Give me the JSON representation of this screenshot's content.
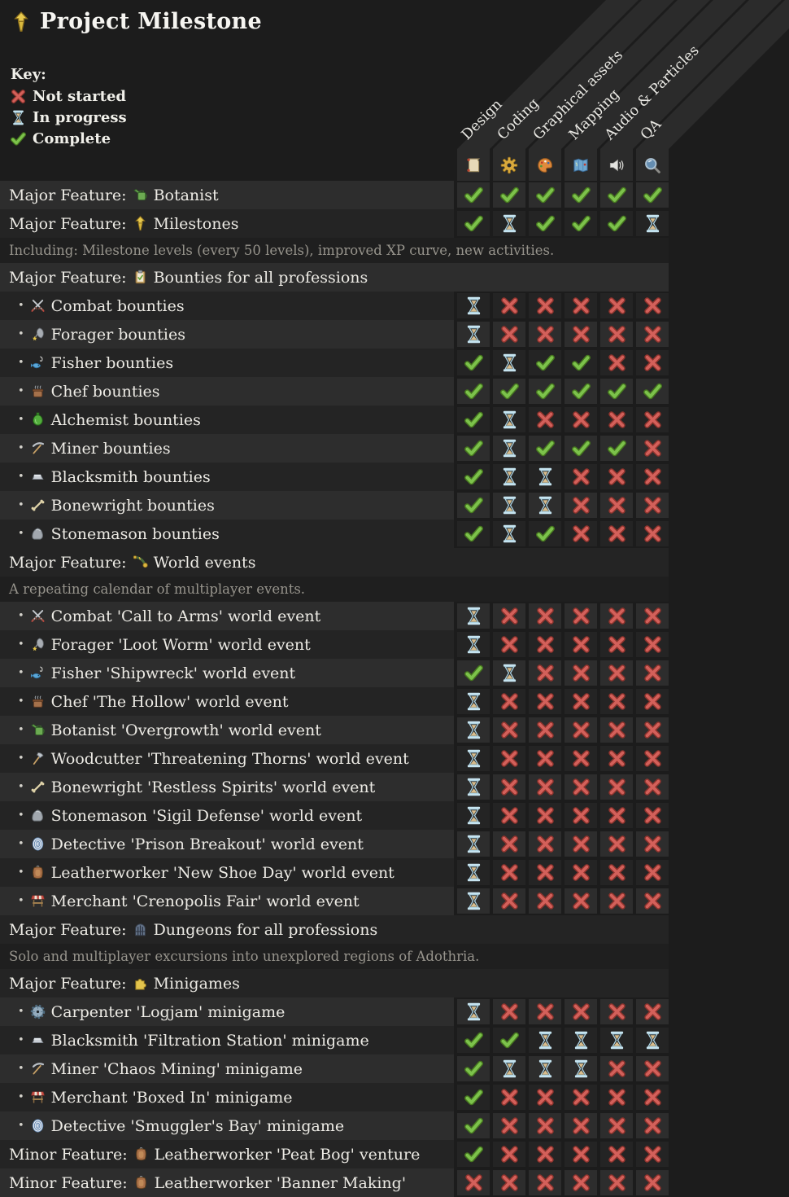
{
  "page": {
    "title": "Project Milestone",
    "background": "#1c1c1c"
  },
  "key": {
    "heading": "Key:",
    "items": [
      {
        "status": "not-started",
        "label": "Not started"
      },
      {
        "status": "in-progress",
        "label": "In progress"
      },
      {
        "status": "complete",
        "label": "Complete"
      }
    ]
  },
  "status_colors": {
    "complete": "#7cc24b",
    "in_progress": "#c6e4f0",
    "not_started": "#d3605a"
  },
  "columns": [
    {
      "label": "Design",
      "icon": "scroll-icon"
    },
    {
      "label": "Coding",
      "icon": "gear-icon"
    },
    {
      "label": "Graphical assets",
      "icon": "palette-icon"
    },
    {
      "label": "Mapping",
      "icon": "map-icon"
    },
    {
      "label": "Audio & Particles",
      "icon": "speaker-icon"
    },
    {
      "label": "QA",
      "icon": "magnifier-icon"
    }
  ],
  "rows": [
    {
      "type": "feature",
      "prefix": "Major Feature:",
      "icon": "watering-can-icon",
      "label": "Botanist",
      "shade": "light",
      "statuses": [
        "complete",
        "complete",
        "complete",
        "complete",
        "complete",
        "complete"
      ]
    },
    {
      "type": "feature",
      "prefix": "Major Feature:",
      "icon": "milestone-icon",
      "label": "Milestones",
      "shade": "dark",
      "statuses": [
        "complete",
        "in-progress",
        "complete",
        "complete",
        "complete",
        "in-progress"
      ]
    },
    {
      "type": "note",
      "label": "Including: Milestone levels (every 50 levels), improved XP curve, new activities.",
      "shade": "note"
    },
    {
      "type": "section",
      "prefix": "Major Feature:",
      "icon": "clipboard-icon",
      "label": "Bounties for all professions",
      "shade": "light"
    },
    {
      "type": "item",
      "icon": "swords-icon",
      "label": "Combat bounties",
      "shade": "dark",
      "statuses": [
        "in-progress",
        "not-started",
        "not-started",
        "not-started",
        "not-started",
        "not-started"
      ]
    },
    {
      "type": "item",
      "icon": "forager-icon",
      "label": "Forager bounties",
      "shade": "light",
      "statuses": [
        "in-progress",
        "not-started",
        "not-started",
        "not-started",
        "not-started",
        "not-started"
      ]
    },
    {
      "type": "item",
      "icon": "fisher-icon",
      "label": "Fisher bounties",
      "shade": "dark",
      "statuses": [
        "complete",
        "in-progress",
        "complete",
        "complete",
        "not-started",
        "not-started"
      ]
    },
    {
      "type": "item",
      "icon": "chef-icon",
      "label": "Chef bounties",
      "shade": "light",
      "statuses": [
        "complete",
        "complete",
        "complete",
        "complete",
        "complete",
        "complete"
      ]
    },
    {
      "type": "item",
      "icon": "alchemist-icon",
      "label": "Alchemist bounties",
      "shade": "dark",
      "statuses": [
        "complete",
        "in-progress",
        "not-started",
        "not-started",
        "not-started",
        "not-started"
      ]
    },
    {
      "type": "item",
      "icon": "miner-icon",
      "label": "Miner bounties",
      "shade": "light",
      "statuses": [
        "complete",
        "in-progress",
        "complete",
        "complete",
        "complete",
        "not-started"
      ]
    },
    {
      "type": "item",
      "icon": "ingot-icon",
      "label": "Blacksmith bounties",
      "shade": "dark",
      "statuses": [
        "complete",
        "in-progress",
        "in-progress",
        "not-started",
        "not-started",
        "not-started"
      ]
    },
    {
      "type": "item",
      "icon": "bone-icon",
      "label": "Bonewright bounties",
      "shade": "light",
      "statuses": [
        "complete",
        "in-progress",
        "in-progress",
        "not-started",
        "not-started",
        "not-started"
      ]
    },
    {
      "type": "item",
      "icon": "rock-icon",
      "label": "Stonemason bounties",
      "shade": "dark",
      "statuses": [
        "complete",
        "in-progress",
        "complete",
        "not-started",
        "not-started",
        "not-started"
      ]
    },
    {
      "type": "section",
      "prefix": "Major Feature:",
      "icon": "horn-icon",
      "label": "World events",
      "shade": "dark"
    },
    {
      "type": "note",
      "label": "A repeating calendar of multiplayer events.",
      "shade": "note"
    },
    {
      "type": "item",
      "icon": "swords-icon",
      "label": "Combat 'Call to Arms' world event",
      "shade": "light",
      "statuses": [
        "in-progress",
        "not-started",
        "not-started",
        "not-started",
        "not-started",
        "not-started"
      ]
    },
    {
      "type": "item",
      "icon": "forager-icon",
      "label": "Forager 'Loot Worm' world event",
      "shade": "dark",
      "statuses": [
        "in-progress",
        "not-started",
        "not-started",
        "not-started",
        "not-started",
        "not-started"
      ]
    },
    {
      "type": "item",
      "icon": "fisher-icon",
      "label": "Fisher 'Shipwreck' world event",
      "shade": "light",
      "statuses": [
        "complete",
        "in-progress",
        "not-started",
        "not-started",
        "not-started",
        "not-started"
      ]
    },
    {
      "type": "item",
      "icon": "chef-icon",
      "label": "Chef 'The Hollow' world event",
      "shade": "dark",
      "statuses": [
        "in-progress",
        "not-started",
        "not-started",
        "not-started",
        "not-started",
        "not-started"
      ]
    },
    {
      "type": "item",
      "icon": "watering-can-icon",
      "label": "Botanist 'Overgrowth' world event",
      "shade": "light",
      "statuses": [
        "in-progress",
        "not-started",
        "not-started",
        "not-started",
        "not-started",
        "not-started"
      ]
    },
    {
      "type": "item",
      "icon": "axe-icon",
      "label": "Woodcutter 'Threatening Thorns' world event",
      "shade": "dark",
      "statuses": [
        "in-progress",
        "not-started",
        "not-started",
        "not-started",
        "not-started",
        "not-started"
      ]
    },
    {
      "type": "item",
      "icon": "bone-icon",
      "label": "Bonewright 'Restless Spirits' world event",
      "shade": "light",
      "statuses": [
        "in-progress",
        "not-started",
        "not-started",
        "not-started",
        "not-started",
        "not-started"
      ]
    },
    {
      "type": "item",
      "icon": "rock-icon",
      "label": "Stonemason 'Sigil Defense' world event",
      "shade": "dark",
      "statuses": [
        "in-progress",
        "not-started",
        "not-started",
        "not-started",
        "not-started",
        "not-started"
      ]
    },
    {
      "type": "item",
      "icon": "fingerprint-icon",
      "label": "Detective 'Prison Breakout' world event",
      "shade": "light",
      "statuses": [
        "in-progress",
        "not-started",
        "not-started",
        "not-started",
        "not-started",
        "not-started"
      ]
    },
    {
      "type": "item",
      "icon": "hide-icon",
      "label": "Leatherworker 'New Shoe Day' world event",
      "shade": "dark",
      "statuses": [
        "in-progress",
        "not-started",
        "not-started",
        "not-started",
        "not-started",
        "not-started"
      ]
    },
    {
      "type": "item",
      "icon": "stall-icon",
      "label": "Merchant 'Crenopolis Fair' world event",
      "shade": "light",
      "statuses": [
        "in-progress",
        "not-started",
        "not-started",
        "not-started",
        "not-started",
        "not-started"
      ]
    },
    {
      "type": "section",
      "prefix": "Major Feature:",
      "icon": "dungeon-icon",
      "label": "Dungeons for all professions",
      "shade": "dark"
    },
    {
      "type": "note",
      "label": "Solo and multiplayer excursions into unexplored regions of Adothria.",
      "shade": "note"
    },
    {
      "type": "section",
      "prefix": "Major Feature:",
      "icon": "puzzle-icon",
      "label": "Minigames",
      "shade": "dark"
    },
    {
      "type": "item",
      "icon": "saw-icon",
      "label": "Carpenter 'Logjam' minigame",
      "shade": "light",
      "statuses": [
        "in-progress",
        "not-started",
        "not-started",
        "not-started",
        "not-started",
        "not-started"
      ]
    },
    {
      "type": "item",
      "icon": "ingot-icon",
      "label": "Blacksmith 'Filtration Station' minigame",
      "shade": "dark",
      "statuses": [
        "complete",
        "complete",
        "in-progress",
        "in-progress",
        "in-progress",
        "in-progress"
      ]
    },
    {
      "type": "item",
      "icon": "miner-icon",
      "label": "Miner 'Chaos Mining' minigame",
      "shade": "light",
      "statuses": [
        "complete",
        "in-progress",
        "in-progress",
        "in-progress",
        "not-started",
        "not-started"
      ]
    },
    {
      "type": "item",
      "icon": "stall-icon",
      "label": "Merchant 'Boxed In' minigame",
      "shade": "dark",
      "statuses": [
        "complete",
        "not-started",
        "not-started",
        "not-started",
        "not-started",
        "not-started"
      ]
    },
    {
      "type": "item",
      "icon": "fingerprint-icon",
      "label": "Detective 'Smuggler's Bay' minigame",
      "shade": "light",
      "statuses": [
        "complete",
        "not-started",
        "not-started",
        "not-started",
        "not-started",
        "not-started"
      ]
    },
    {
      "type": "feature",
      "prefix": "Minor Feature:",
      "icon": "hide-icon",
      "label": "Leatherworker 'Peat Bog' venture",
      "shade": "dark",
      "statuses": [
        "complete",
        "not-started",
        "not-started",
        "not-started",
        "not-started",
        "not-started"
      ]
    },
    {
      "type": "feature",
      "prefix": "Minor Feature:",
      "icon": "hide-icon",
      "label": "Leatherworker 'Banner Making'",
      "shade": "light",
      "statuses": [
        "not-started",
        "not-started",
        "not-started",
        "not-started",
        "not-started",
        "not-started"
      ]
    }
  ]
}
